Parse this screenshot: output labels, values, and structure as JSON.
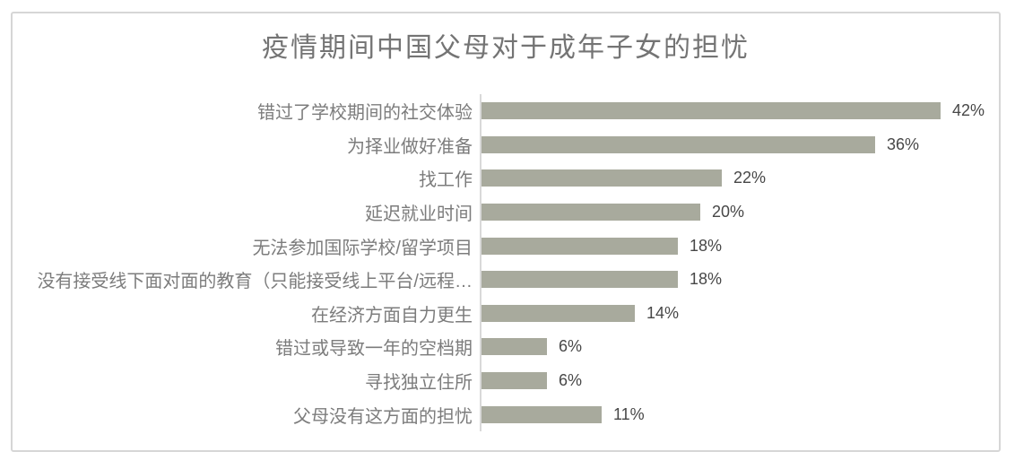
{
  "chart_data": {
    "type": "bar",
    "orientation": "horizontal",
    "title": "疫情期间中国父母对于成年子女的担忧",
    "categories": [
      "错过了学校期间的社交体验",
      "为择业做好准备",
      "找工作",
      "延迟就业时间",
      "无法参加国际学校/留学项目",
      "没有接受线下面对面的教育（只能接受线上平台/远程…",
      "在经济方面自力更生",
      "错过或导致一年的空档期",
      "寻找独立住所",
      "父母没有这方面的担忧"
    ],
    "values": [
      42,
      36,
      22,
      20,
      18,
      18,
      14,
      6,
      6,
      11
    ],
    "value_labels": [
      "42%",
      "36%",
      "22%",
      "20%",
      "18%",
      "18%",
      "14%",
      "6%",
      "6%",
      "11%"
    ],
    "unit": "%",
    "xlim": [
      0,
      47
    ],
    "grid": false,
    "legend": false,
    "colors": {
      "bar": "#a8aa9d",
      "axis": "#d9d9d9",
      "title_text": "#747474",
      "category_text": "#7c7c7c",
      "value_text": "#474747",
      "frame_border": "#d6d6d6"
    }
  }
}
